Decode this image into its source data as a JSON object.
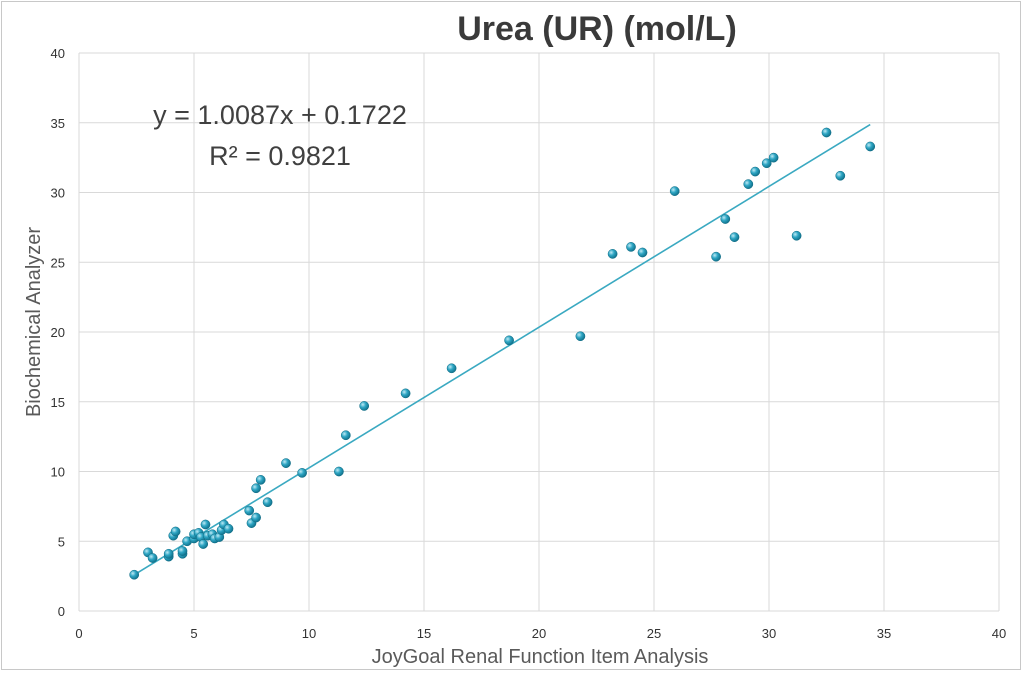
{
  "chart_data": {
    "type": "scatter",
    "title": "Urea (UR) (mol/L)",
    "xlabel": "JoyGoal Renal Function Item Analysis",
    "ylabel": "Biochemical  Analyzer",
    "xlim": [
      0,
      40
    ],
    "ylim": [
      0,
      40
    ],
    "xticks": [
      "0",
      "5",
      "10",
      "15",
      "20",
      "25",
      "30",
      "35",
      "40"
    ],
    "yticks": [
      "0",
      "5",
      "10",
      "15",
      "20",
      "25",
      "30",
      "35",
      "40"
    ],
    "grid": true,
    "legend": "none",
    "annotations": {
      "equation": "y = 1.0087x + 0.1722",
      "r_squared": "R² = 0.9821"
    },
    "trendline": {
      "slope": 1.0087,
      "intercept": 0.1722,
      "x_range": [
        2.4,
        34.4
      ]
    },
    "colors": {
      "point": "#1f9bb8",
      "trendline": "#3aa9c1",
      "grid": "#d9d9d9"
    },
    "series": [
      {
        "points": [
          [
            2.4,
            2.6
          ],
          [
            3.0,
            4.2
          ],
          [
            3.2,
            3.8
          ],
          [
            3.9,
            3.9
          ],
          [
            3.9,
            4.1
          ],
          [
            4.1,
            5.4
          ],
          [
            4.2,
            5.7
          ],
          [
            4.5,
            4.1
          ],
          [
            4.5,
            4.3
          ],
          [
            4.7,
            5.0
          ],
          [
            5.0,
            5.2
          ],
          [
            5.0,
            5.5
          ],
          [
            5.2,
            5.6
          ],
          [
            5.3,
            5.3
          ],
          [
            5.4,
            4.8
          ],
          [
            5.5,
            6.2
          ],
          [
            5.6,
            5.4
          ],
          [
            5.8,
            5.5
          ],
          [
            5.9,
            5.2
          ],
          [
            6.1,
            5.3
          ],
          [
            6.2,
            5.8
          ],
          [
            6.3,
            6.2
          ],
          [
            6.5,
            5.9
          ],
          [
            7.4,
            7.2
          ],
          [
            7.5,
            6.3
          ],
          [
            7.7,
            8.8
          ],
          [
            7.7,
            6.7
          ],
          [
            7.9,
            9.4
          ],
          [
            8.2,
            7.8
          ],
          [
            9.0,
            10.6
          ],
          [
            9.7,
            9.9
          ],
          [
            11.3,
            10.0
          ],
          [
            11.6,
            12.6
          ],
          [
            12.4,
            14.7
          ],
          [
            14.2,
            15.6
          ],
          [
            16.2,
            17.4
          ],
          [
            18.7,
            19.4
          ],
          [
            21.8,
            19.7
          ],
          [
            23.2,
            25.6
          ],
          [
            24.0,
            26.1
          ],
          [
            24.5,
            25.7
          ],
          [
            25.9,
            30.1
          ],
          [
            27.7,
            25.4
          ],
          [
            28.1,
            28.1
          ],
          [
            28.5,
            26.8
          ],
          [
            29.1,
            30.6
          ],
          [
            29.4,
            31.5
          ],
          [
            29.9,
            32.1
          ],
          [
            30.2,
            32.5
          ],
          [
            31.2,
            26.9
          ],
          [
            32.5,
            34.3
          ],
          [
            33.1,
            31.2
          ],
          [
            34.4,
            33.3
          ]
        ]
      }
    ]
  }
}
